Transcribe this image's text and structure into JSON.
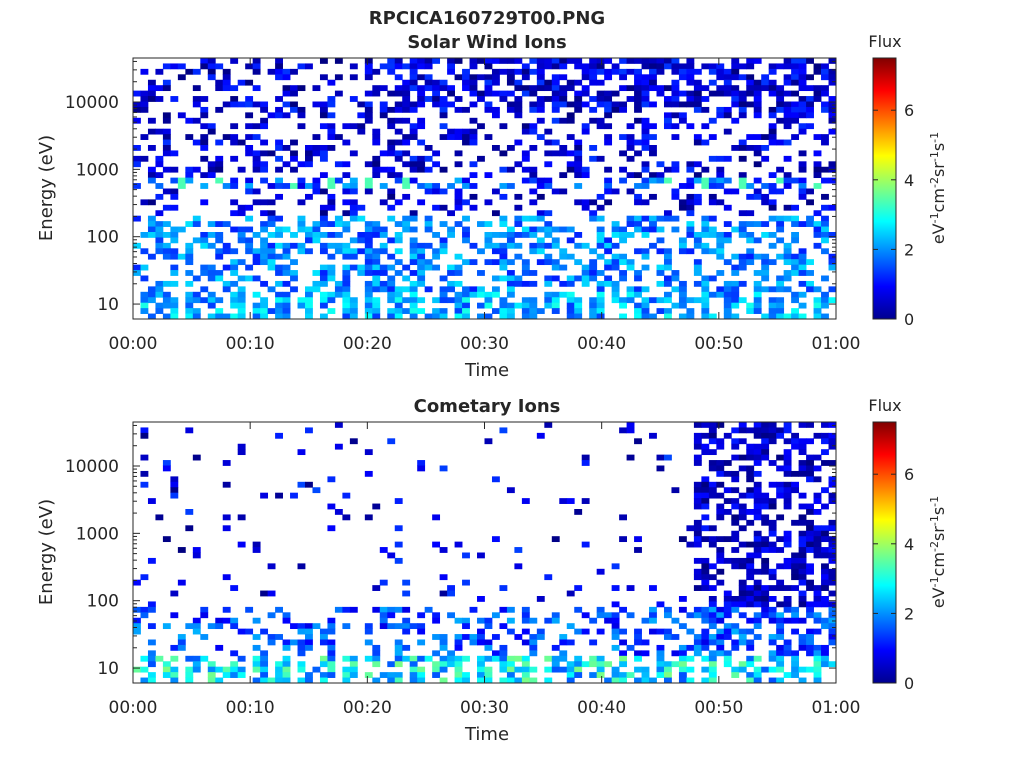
{
  "figure_title": "RPCICA160729T00.PNG",
  "chart_data": [
    {
      "type": "heatmap",
      "title": "Solar Wind Ions",
      "xlabel": "Time",
      "ylabel": "Energy (eV)",
      "x_ticks": [
        "00:00",
        "00:10",
        "00:20",
        "00:30",
        "00:40",
        "00:50",
        "01:00"
      ],
      "y_ticks": [
        "10",
        "100",
        "1000",
        "10000"
      ],
      "y_scale": "log",
      "ylim": [
        6,
        45000
      ],
      "colorbar": {
        "title": "Flux",
        "label": "eV-1cm-2sr-1s-1",
        "ticks": [
          "0",
          "2",
          "4",
          "6"
        ],
        "range": [
          0,
          7.5
        ],
        "colormap": "jet"
      }
    },
    {
      "type": "heatmap",
      "title": "Cometary Ions",
      "xlabel": "Time",
      "ylabel": "Energy (eV)",
      "x_ticks": [
        "00:00",
        "00:10",
        "00:20",
        "00:30",
        "00:40",
        "00:50",
        "01:00"
      ],
      "y_ticks": [
        "10",
        "100",
        "1000",
        "10000"
      ],
      "y_scale": "log",
      "ylim": [
        6,
        45000
      ],
      "colorbar": {
        "title": "Flux",
        "label": "eV-1cm-2sr-1s-1",
        "ticks": [
          "0",
          "2",
          "4",
          "6"
        ],
        "range": [
          0,
          7.5
        ],
        "colormap": "jet"
      }
    }
  ]
}
